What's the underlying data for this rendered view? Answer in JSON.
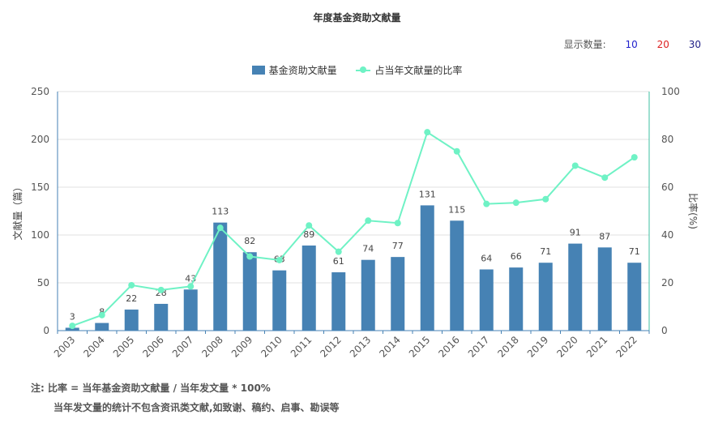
{
  "chart_data": {
    "type": "bar",
    "title": "年度基金资助文献量",
    "categories": [
      "2003",
      "2004",
      "2005",
      "2006",
      "2007",
      "2008",
      "2009",
      "2010",
      "2011",
      "2012",
      "2013",
      "2014",
      "2015",
      "2016",
      "2017",
      "2018",
      "2019",
      "2020",
      "2021",
      "2022"
    ],
    "series": [
      {
        "name": "基金资助文献量",
        "type": "bar",
        "axis": "left",
        "color": "#4682b4",
        "values": [
          3,
          8,
          22,
          28,
          43,
          113,
          82,
          63,
          89,
          61,
          74,
          77,
          131,
          115,
          64,
          66,
          71,
          91,
          87,
          71
        ]
      },
      {
        "name": "占当年文献量的比率",
        "type": "line",
        "axis": "right",
        "color": "#6ff2c5",
        "values": [
          2,
          6.5,
          19,
          17,
          18.5,
          43,
          31,
          29.5,
          44,
          33,
          46,
          45,
          83,
          75,
          53,
          53.5,
          55,
          69,
          64,
          72.5
        ]
      }
    ],
    "y_left": {
      "label": "文献量（篇）",
      "min": 0,
      "max": 250,
      "ticks": [
        0,
        50,
        100,
        150,
        200,
        250
      ]
    },
    "y_right": {
      "label": "比率(%)",
      "min": 0,
      "max": 100,
      "ticks": [
        0,
        20,
        40,
        60,
        80,
        100
      ]
    },
    "grid": true,
    "legend_position": "top-center"
  },
  "count_selector": {
    "label": "显示数量:",
    "options": [
      {
        "label": "10",
        "color": "#2222cc"
      },
      {
        "label": "20",
        "color": "#dd2222"
      },
      {
        "label": "30",
        "color": "#222288"
      }
    ]
  },
  "notes": {
    "line1": "注:   比率 = 当年基金资助文献量 / 当年发文量 * 100%",
    "line2": "当年发文量的统计不包含资讯类文献,如致谢、稿约、启事、勘误等"
  }
}
